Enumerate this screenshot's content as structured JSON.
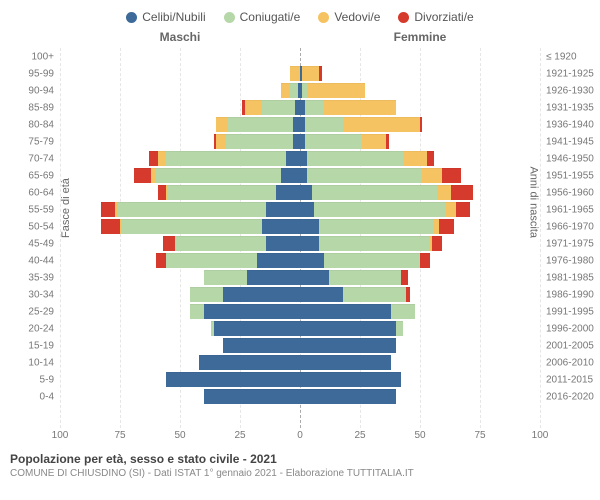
{
  "chart_type": "population_pyramid",
  "background_color": "#ffffff",
  "grid_color": "#e6e6e6",
  "center_line_color": "#aaaaaa",
  "title": "Popolazione per età, sesso e stato civile - 2021",
  "subtitle": "COMUNE DI CHIUSDINO (SI) - Dati ISTAT 1° gennaio 2021 - Elaborazione TUTTITALIA.IT",
  "axis_left_title": "Fasce di età",
  "axis_right_title": "Anni di nascita",
  "header_male": "Maschi",
  "header_female": "Femmine",
  "legend": [
    {
      "label": "Celibi/Nubili",
      "color": "#3d6a98"
    },
    {
      "label": "Coniugati/e",
      "color": "#b6d7a8"
    },
    {
      "label": "Vedovi/e",
      "color": "#f6c362"
    },
    {
      "label": "Divorziati/e",
      "color": "#d63a2c"
    }
  ],
  "x_ticks": [
    -100,
    -75,
    -50,
    -25,
    0,
    25,
    50,
    75,
    100
  ],
  "x_max": 100,
  "age_bands": [
    {
      "age": "100+",
      "birth": "≤ 1920",
      "male": {
        "c": 0,
        "m": 0,
        "w": 0,
        "d": 0
      },
      "female": {
        "c": 0,
        "m": 0,
        "w": 0,
        "d": 0
      }
    },
    {
      "age": "95-99",
      "birth": "1921-1925",
      "male": {
        "c": 0,
        "m": 0,
        "w": 4,
        "d": 0
      },
      "female": {
        "c": 1,
        "m": 0,
        "w": 7,
        "d": 1
      }
    },
    {
      "age": "90-94",
      "birth": "1926-1930",
      "male": {
        "c": 1,
        "m": 3,
        "w": 4,
        "d": 0
      },
      "female": {
        "c": 1,
        "m": 2,
        "w": 24,
        "d": 0
      }
    },
    {
      "age": "85-89",
      "birth": "1931-1935",
      "male": {
        "c": 2,
        "m": 14,
        "w": 7,
        "d": 1
      },
      "female": {
        "c": 2,
        "m": 8,
        "w": 30,
        "d": 0
      }
    },
    {
      "age": "80-84",
      "birth": "1936-1940",
      "male": {
        "c": 3,
        "m": 27,
        "w": 5,
        "d": 0
      },
      "female": {
        "c": 2,
        "m": 16,
        "w": 32,
        "d": 1
      }
    },
    {
      "age": "75-79",
      "birth": "1941-1945",
      "male": {
        "c": 3,
        "m": 28,
        "w": 4,
        "d": 1
      },
      "female": {
        "c": 2,
        "m": 24,
        "w": 10,
        "d": 1
      }
    },
    {
      "age": "70-74",
      "birth": "1946-1950",
      "male": {
        "c": 6,
        "m": 50,
        "w": 3,
        "d": 4
      },
      "female": {
        "c": 3,
        "m": 40,
        "w": 10,
        "d": 3
      }
    },
    {
      "age": "65-69",
      "birth": "1951-1955",
      "male": {
        "c": 8,
        "m": 52,
        "w": 2,
        "d": 7
      },
      "female": {
        "c": 3,
        "m": 48,
        "w": 8,
        "d": 8
      }
    },
    {
      "age": "60-64",
      "birth": "1956-1960",
      "male": {
        "c": 10,
        "m": 45,
        "w": 1,
        "d": 3
      },
      "female": {
        "c": 5,
        "m": 52,
        "w": 6,
        "d": 9
      }
    },
    {
      "age": "55-59",
      "birth": "1961-1965",
      "male": {
        "c": 14,
        "m": 62,
        "w": 1,
        "d": 6
      },
      "female": {
        "c": 6,
        "m": 55,
        "w": 4,
        "d": 6
      }
    },
    {
      "age": "50-54",
      "birth": "1966-1970",
      "male": {
        "c": 16,
        "m": 58,
        "w": 1,
        "d": 8
      },
      "female": {
        "c": 8,
        "m": 48,
        "w": 2,
        "d": 6
      }
    },
    {
      "age": "45-49",
      "birth": "1971-1975",
      "male": {
        "c": 14,
        "m": 38,
        "w": 0,
        "d": 5
      },
      "female": {
        "c": 8,
        "m": 46,
        "w": 1,
        "d": 4
      }
    },
    {
      "age": "40-44",
      "birth": "1976-1980",
      "male": {
        "c": 18,
        "m": 38,
        "w": 0,
        "d": 4
      },
      "female": {
        "c": 10,
        "m": 40,
        "w": 0,
        "d": 4
      }
    },
    {
      "age": "35-39",
      "birth": "1981-1985",
      "male": {
        "c": 22,
        "m": 18,
        "w": 0,
        "d": 0
      },
      "female": {
        "c": 12,
        "m": 30,
        "w": 0,
        "d": 3
      }
    },
    {
      "age": "30-34",
      "birth": "1986-1990",
      "male": {
        "c": 32,
        "m": 14,
        "w": 0,
        "d": 0
      },
      "female": {
        "c": 18,
        "m": 26,
        "w": 0,
        "d": 2
      }
    },
    {
      "age": "25-29",
      "birth": "1991-1995",
      "male": {
        "c": 40,
        "m": 6,
        "w": 0,
        "d": 0
      },
      "female": {
        "c": 38,
        "m": 10,
        "w": 0,
        "d": 0
      }
    },
    {
      "age": "20-24",
      "birth": "1996-2000",
      "male": {
        "c": 36,
        "m": 1,
        "w": 0,
        "d": 0
      },
      "female": {
        "c": 40,
        "m": 3,
        "w": 0,
        "d": 0
      }
    },
    {
      "age": "15-19",
      "birth": "2001-2005",
      "male": {
        "c": 32,
        "m": 0,
        "w": 0,
        "d": 0
      },
      "female": {
        "c": 40,
        "m": 0,
        "w": 0,
        "d": 0
      }
    },
    {
      "age": "10-14",
      "birth": "2006-2010",
      "male": {
        "c": 42,
        "m": 0,
        "w": 0,
        "d": 0
      },
      "female": {
        "c": 38,
        "m": 0,
        "w": 0,
        "d": 0
      }
    },
    {
      "age": "5-9",
      "birth": "2011-2015",
      "male": {
        "c": 56,
        "m": 0,
        "w": 0,
        "d": 0
      },
      "female": {
        "c": 42,
        "m": 0,
        "w": 0,
        "d": 0
      }
    },
    {
      "age": "0-4",
      "birth": "2016-2020",
      "male": {
        "c": 40,
        "m": 0,
        "w": 0,
        "d": 0
      },
      "female": {
        "c": 40,
        "m": 0,
        "w": 0,
        "d": 0
      }
    }
  ]
}
